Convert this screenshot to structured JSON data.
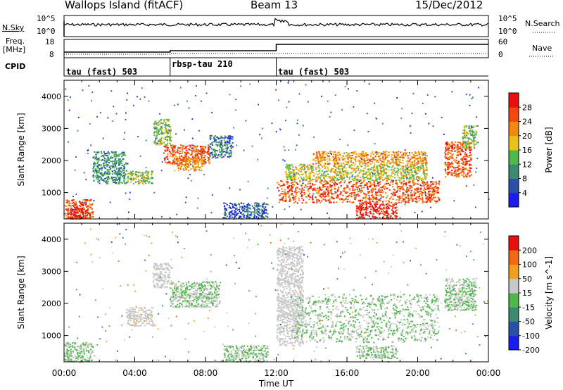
{
  "header": {
    "station": "Wallops Island (fitACF)",
    "beam": "Beam 13",
    "date": "15/Dec/2012"
  },
  "top_panel": {
    "nsky_label": "N.Sky",
    "nsky_tick_hi": "10^5",
    "nsky_tick_lo": "10^0",
    "nsearch_label": "N.Search",
    "nsearch_tick_hi": "10^5",
    "nsearch_tick_lo": "10^0",
    "freq_label_1": "Freq.",
    "freq_label_2": "[MHz]",
    "freq_tick_hi": "18",
    "freq_tick_lo": "8",
    "nave_label": "Nave",
    "nave_tick_hi": "60",
    "nave_tick_lo": "0",
    "cpid_label": "CPID",
    "cpid_segments": [
      {
        "label": "tau (fast) 503",
        "start_h": 0,
        "end_h": 6
      },
      {
        "label": "rbsp-tau 210",
        "start_h": 6,
        "end_h": 12
      },
      {
        "label": "tau (fast) 503",
        "start_h": 12,
        "end_h": 24
      }
    ]
  },
  "chart_data": [
    {
      "type": "heatmap",
      "title": "",
      "xlabel": "",
      "ylabel": "Slant Range [km]",
      "xlim": [
        0,
        24
      ],
      "ylim": [
        180,
        4500
      ],
      "yticks": [
        "1000",
        "2000",
        "3000",
        "4000"
      ],
      "colorbar_label": "Power [dB]",
      "colorbar_ticks": [
        "4",
        "8",
        "12",
        "16",
        "20",
        "24",
        "28"
      ],
      "colorbar_range": [
        0,
        30
      ],
      "colors": [
        "#1c1cf0",
        "#2a4fa8",
        "#3b8a6e",
        "#4fb84a",
        "#e8c21a",
        "#f08a10",
        "#f04a10",
        "#e80f0f"
      ],
      "regions": [
        {
          "t0": 0.0,
          "t1": 1.6,
          "r0": 200,
          "r1": 800,
          "value": 24
        },
        {
          "t0": 0.2,
          "t1": 1.3,
          "r0": 200,
          "r1": 550,
          "value": 28
        },
        {
          "t0": 1.6,
          "t1": 3.5,
          "r0": 1300,
          "r1": 2300,
          "value": 10
        },
        {
          "t0": 3.5,
          "t1": 5.0,
          "r0": 1300,
          "r1": 1700,
          "value": 14
        },
        {
          "t0": 5.0,
          "t1": 6.0,
          "r0": 2500,
          "r1": 3300,
          "value": 14
        },
        {
          "t0": 5.6,
          "t1": 8.2,
          "r0": 1900,
          "r1": 2500,
          "value": 24
        },
        {
          "t0": 6.2,
          "t1": 7.8,
          "r0": 1700,
          "r1": 2100,
          "value": 20
        },
        {
          "t0": 8.2,
          "t1": 9.5,
          "r0": 2100,
          "r1": 2800,
          "value": 8
        },
        {
          "t0": 9.0,
          "t1": 11.5,
          "r0": 200,
          "r1": 700,
          "value": 6
        },
        {
          "t0": 12.0,
          "t1": 21.2,
          "r0": 700,
          "r1": 1400,
          "value": 24
        },
        {
          "t0": 12.5,
          "t1": 20.5,
          "r0": 1400,
          "r1": 1900,
          "value": 16
        },
        {
          "t0": 14.0,
          "t1": 20.5,
          "r0": 1900,
          "r1": 2300,
          "value": 20
        },
        {
          "t0": 16.5,
          "t1": 18.8,
          "r0": 200,
          "r1": 700,
          "value": 28
        },
        {
          "t0": 21.5,
          "t1": 23.0,
          "r0": 1500,
          "r1": 2600,
          "value": 24
        },
        {
          "t0": 22.5,
          "t1": 23.3,
          "r0": 2400,
          "r1": 3100,
          "value": 14
        }
      ]
    },
    {
      "type": "heatmap",
      "title": "",
      "xlabel": "Time UT",
      "ylabel": "Slant Range [km]",
      "xlim": [
        0,
        24
      ],
      "ylim": [
        180,
        4500
      ],
      "yticks": [
        "1000",
        "2000",
        "3000",
        "4000"
      ],
      "xticks": [
        "00:00",
        "04:00",
        "08:00",
        "12:00",
        "16:00",
        "20:00",
        "00:00"
      ],
      "colorbar_label": "Velocity [m s^-1]",
      "colorbar_ticks": [
        "200",
        "100",
        "50",
        "15",
        "-15",
        "-50",
        "-100",
        "-200"
      ],
      "colorbar_range": [
        -250,
        250
      ],
      "colors": [
        "#1c1cf0",
        "#2a4fa8",
        "#3b8a6e",
        "#4fb84a",
        "#c8c8c8",
        "#f0a020",
        "#f06a10",
        "#e80f0f"
      ],
      "ground_scatter_color": "#c0c0c0",
      "regions": [
        {
          "t0": 0.0,
          "t1": 1.6,
          "r0": 200,
          "r1": 800,
          "value": 0
        },
        {
          "t0": 3.5,
          "t1": 5.0,
          "r0": 1300,
          "r1": 1900,
          "value": 45
        },
        {
          "t0": 5.0,
          "t1": 6.0,
          "r0": 2500,
          "r1": 3300,
          "value": 20
        },
        {
          "t0": 6.0,
          "t1": 8.8,
          "r0": 1900,
          "r1": 2700,
          "value": 0
        },
        {
          "t0": 9.0,
          "t1": 11.5,
          "r0": 200,
          "r1": 700,
          "value": 0
        },
        {
          "t0": 12.0,
          "t1": 13.5,
          "r0": 700,
          "r1": 3800,
          "value": 30
        },
        {
          "t0": 13.0,
          "t1": 21.2,
          "r0": 800,
          "r1": 2300,
          "value": 0
        },
        {
          "t0": 16.5,
          "t1": 18.8,
          "r0": 300,
          "r1": 700,
          "value": 0
        },
        {
          "t0": 21.5,
          "t1": 23.3,
          "r0": 1800,
          "r1": 2800,
          "value": 0
        }
      ]
    }
  ]
}
